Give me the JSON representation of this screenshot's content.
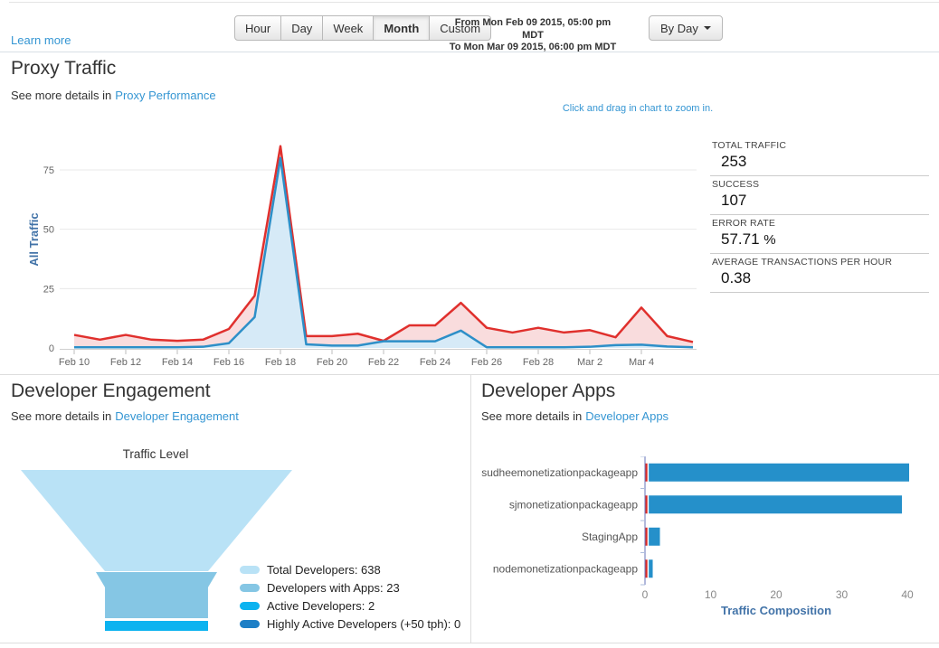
{
  "header": {
    "learn_more": "Learn more",
    "range_buttons": [
      "Hour",
      "Day",
      "Week",
      "Month",
      "Custom"
    ],
    "active_range": "Month",
    "date_from": "From Mon Feb 09 2015, 05:00 pm MDT",
    "date_to": "To Mon Mar 09 2015, 06:00 pm MDT",
    "group_by_label": "By Day"
  },
  "proxy_traffic": {
    "title": "Proxy Traffic",
    "subtitle_prefix": "See more details in",
    "subtitle_link": "Proxy Performance",
    "zoom_hint": "Click and drag in chart to zoom in.",
    "stats": [
      {
        "label": "TOTAL TRAFFIC",
        "value": "253"
      },
      {
        "label": "SUCCESS",
        "value": "107"
      },
      {
        "label": "ERROR RATE",
        "value": "57.71",
        "unit": "%"
      },
      {
        "label": "AVERAGE TRANSACTIONS PER HOUR",
        "value": "0.38"
      }
    ]
  },
  "developer_engagement": {
    "title": "Developer Engagement",
    "subtitle_prefix": "See more details in",
    "subtitle_link": "Developer Engagement",
    "funnel_title": "Traffic Level",
    "legend": [
      {
        "label": "Total Developers: 638",
        "color": "#b9e2f6"
      },
      {
        "label": "Developers with Apps: 23",
        "color": "#85c6e4"
      },
      {
        "label": "Active Developers: 2",
        "color": "#0cb3f0"
      },
      {
        "label": "Highly Active Developers (+50 tph): 0",
        "color": "#1d7fc6"
      }
    ]
  },
  "developer_apps": {
    "title": "Developer Apps",
    "subtitle_prefix": "See more details in",
    "subtitle_link": "Developer Apps"
  },
  "chart_data": [
    {
      "id": "proxy-traffic-chart",
      "type": "area",
      "ylabel": "All Traffic",
      "x": [
        "Feb 10",
        "Feb 11",
        "Feb 12",
        "Feb 13",
        "Feb 14",
        "Feb 15",
        "Feb 16",
        "Feb 17",
        "Feb 18",
        "Feb 19",
        "Feb 20",
        "Feb 21",
        "Feb 22",
        "Feb 23",
        "Feb 24",
        "Feb 25",
        "Feb 26",
        "Feb 27",
        "Feb 28",
        "Mar 1",
        "Mar 2",
        "Mar 3",
        "Mar 4",
        "Mar 5",
        "Mar 6"
      ],
      "x_tick_labels": [
        "Feb 10",
        "Feb 12",
        "Feb 14",
        "Feb 16",
        "Feb 18",
        "Feb 20",
        "Feb 22",
        "Feb 24",
        "Feb 26",
        "Feb 28",
        "Mar 2",
        "Mar 4"
      ],
      "ylim": [
        0,
        85
      ],
      "yticks": [
        0,
        25,
        50,
        75
      ],
      "grid": true,
      "legend_position": "none",
      "series": [
        {
          "name": "total traffic",
          "color": "#e0302d",
          "fill": "#f9dcdd",
          "values": [
            5.5,
            3.5,
            5.5,
            3.5,
            3,
            3.5,
            8,
            22,
            85,
            5,
            5,
            6,
            3,
            9.5,
            9.5,
            19,
            8.5,
            6.5,
            8.5,
            6.5,
            7.5,
            4.5,
            17,
            5,
            2.5
          ]
        },
        {
          "name": "success",
          "color": "#2d8fc8",
          "fill": "#d6eaf7",
          "values": [
            0.3,
            0.3,
            0.3,
            0.3,
            0.3,
            0.5,
            2,
            13,
            80,
            1.5,
            1,
            1,
            2.8,
            2.8,
            2.8,
            7.3,
            0.3,
            0.3,
            0.3,
            0.3,
            0.5,
            1.2,
            1.4,
            0.6,
            0.3
          ]
        }
      ]
    },
    {
      "id": "developer-apps-chart",
      "type": "bar",
      "orientation": "horizontal",
      "xlabel": "Traffic Composition",
      "categories": [
        "sudheemonetizationpackageapp",
        "sjmonetizationpackageapp",
        "StagingApp",
        "nodemonetizationpackageapp"
      ],
      "xticks": [
        0,
        10,
        20,
        30,
        40
      ],
      "xlim": [
        0,
        40
      ],
      "series": [
        {
          "name": "error",
          "color": "#d92b28",
          "values": [
            0.3,
            0.3,
            0.3,
            0.3
          ]
        },
        {
          "name": "traffic",
          "color": "#2590ca",
          "values": [
            39.7,
            38.6,
            1.7,
            0.6
          ]
        }
      ]
    },
    {
      "id": "developer-engagement-funnel",
      "type": "funnel",
      "title": "Traffic Level",
      "stages": [
        {
          "label": "Total Developers",
          "value": 638,
          "color": "#b9e2f6"
        },
        {
          "label": "Developers with Apps",
          "value": 23,
          "color": "#85c6e4"
        },
        {
          "label": "Active Developers",
          "value": 2,
          "color": "#0cb3f0"
        },
        {
          "label": "Highly Active Developers (+50 tph)",
          "value": 0,
          "color": "#1d7fc6"
        }
      ]
    }
  ],
  "colors": {
    "link_blue": "#3596d3",
    "axis_title_blue": "#4273a8",
    "bar_axis_line": "#6673b8",
    "grid_line": "#e8e8e8",
    "divider": "#dddddd"
  }
}
